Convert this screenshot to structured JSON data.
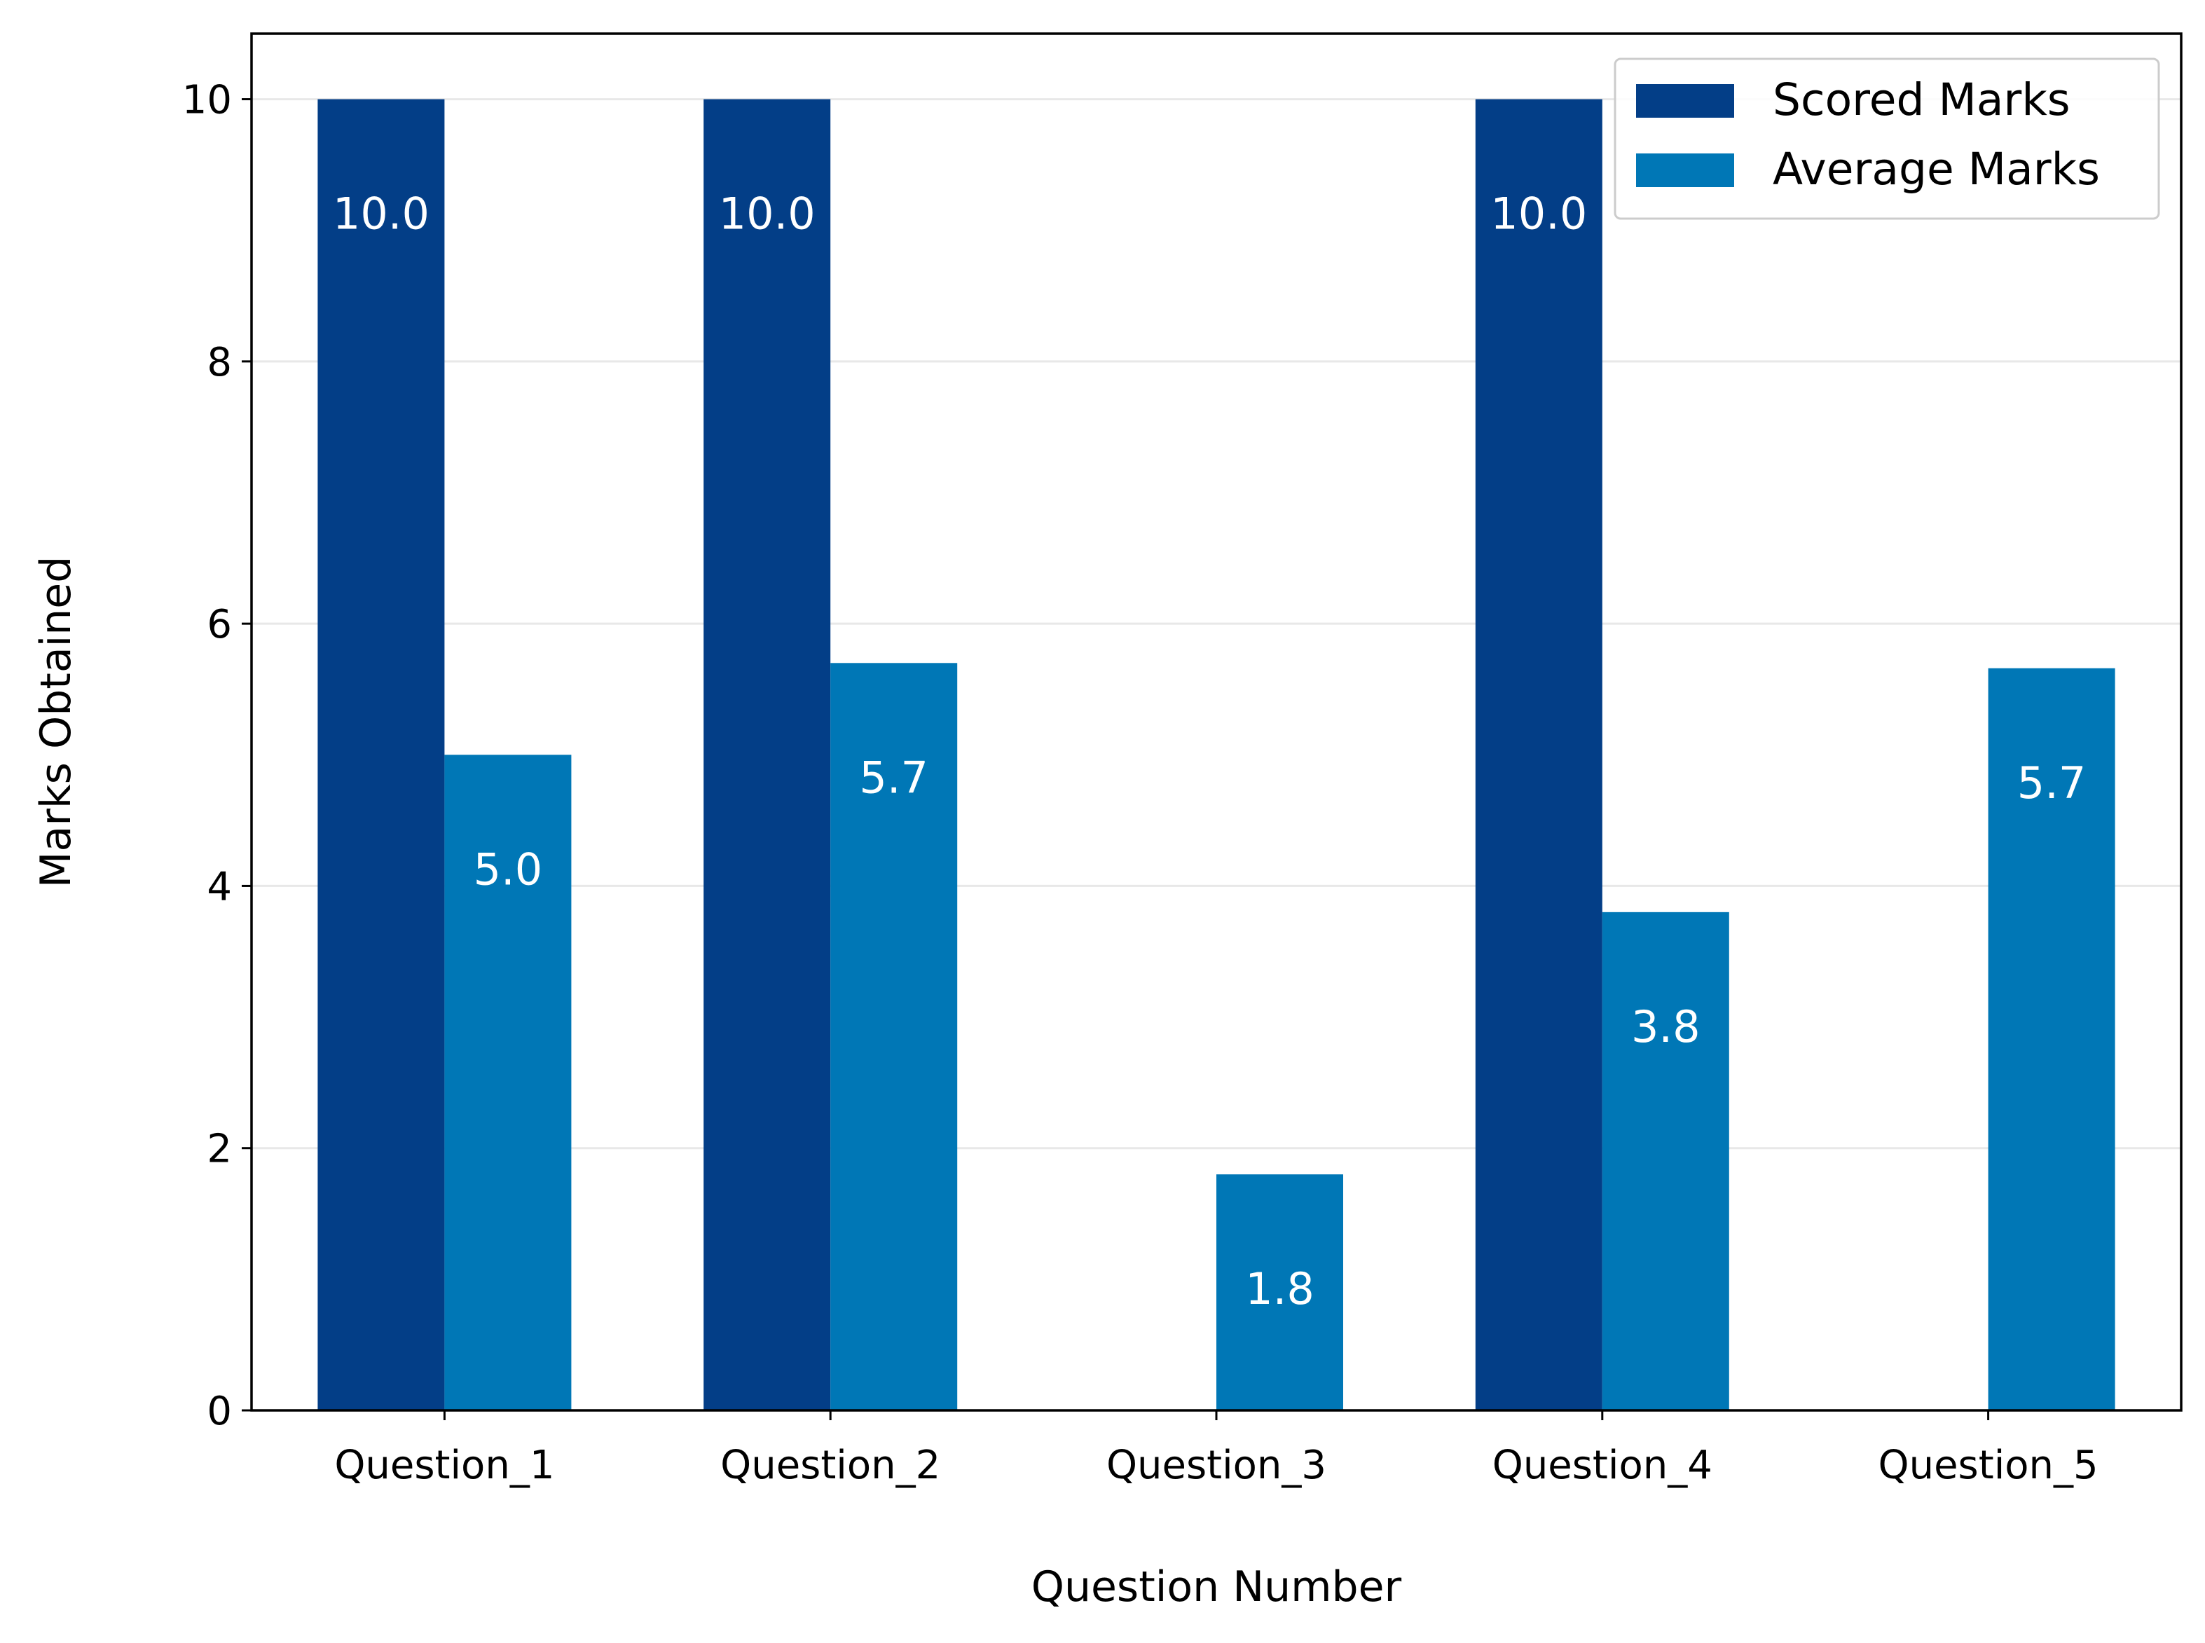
{
  "chart_data": {
    "type": "bar",
    "title": "",
    "xlabel": "Question Number",
    "ylabel": "Marks Obtained",
    "categories": [
      "Question_1",
      "Question_2",
      "Question_3",
      "Question_4",
      "Question_5"
    ],
    "series": [
      {
        "name": "Scored Marks",
        "color": "#033e87",
        "values": [
          10.0,
          10.0,
          0.0,
          10.0,
          0.0
        ],
        "labels": [
          "10.0",
          "10.0",
          "",
          "10.0",
          ""
        ]
      },
      {
        "name": "Average Marks",
        "color": "#0077b6",
        "values": [
          5.0,
          5.7,
          1.8,
          3.8,
          5.66
        ],
        "labels": [
          "5.0",
          "5.7",
          "1.8",
          "3.8",
          "5.7"
        ]
      }
    ],
    "ylim": [
      0,
      10.5
    ],
    "yticks": [
      0,
      2,
      4,
      6,
      8,
      10
    ],
    "grid": "horizontal",
    "legend_position": "top-right"
  }
}
